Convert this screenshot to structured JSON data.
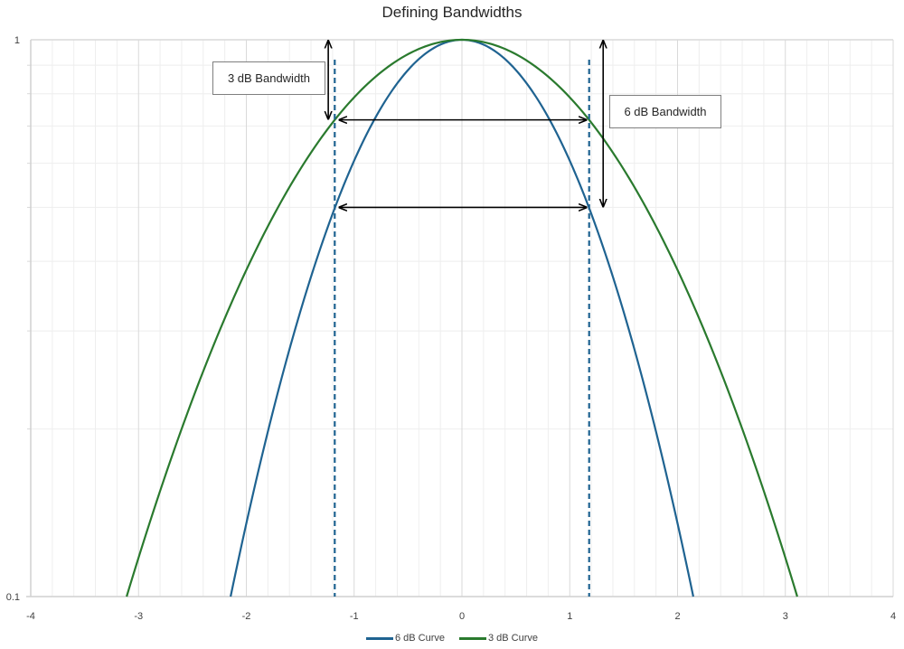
{
  "chart_data": {
    "type": "line",
    "title": "Defining Bandwidths",
    "xlabel": "",
    "ylabel": "",
    "xlim": [
      -4,
      4
    ],
    "ylim": [
      0.1,
      1
    ],
    "yscale": "log",
    "x_ticks": [
      "-4",
      "-3",
      "-2",
      "-1",
      "0",
      "1",
      "2",
      "3",
      "4"
    ],
    "y_ticks": [
      "0.1",
      "1"
    ],
    "x_minor_step": 0.2,
    "y_minor_ticks": [
      0.2,
      0.3,
      0.4,
      0.5,
      0.6,
      0.7,
      0.8,
      0.9
    ],
    "grid": true,
    "legend_position": "bottom",
    "series": [
      {
        "name": "6 dB Curve",
        "color": "#1f6391",
        "model": "exp(-0.5*x^2)",
        "coef": 0.5,
        "x": [
          -2.15,
          -2.0,
          -1.5,
          -1.18,
          -1.0,
          -0.5,
          0,
          0.5,
          1.0,
          1.18,
          1.5,
          2.0,
          2.15
        ],
        "values": [
          0.099,
          0.135,
          0.325,
          0.5,
          0.607,
          0.882,
          1.0,
          0.882,
          0.607,
          0.5,
          0.325,
          0.135,
          0.099
        ]
      },
      {
        "name": "3 dB Curve",
        "color": "#2a7a2e",
        "model": "exp(-0.238*x^2)",
        "coef": 0.238,
        "x": [
          -3.11,
          -3.0,
          -2.0,
          -1.18,
          -1.0,
          0,
          1.0,
          1.18,
          2.0,
          3.0,
          3.11
        ],
        "values": [
          0.1,
          0.117,
          0.386,
          0.718,
          0.788,
          1.0,
          0.788,
          0.718,
          0.386,
          0.117,
          0.1
        ]
      }
    ],
    "annotations": [
      {
        "type": "dashed-vline",
        "x": -1.18,
        "color": "#1f6391"
      },
      {
        "type": "dashed-vline",
        "x": 1.18,
        "color": "#1f6391"
      },
      {
        "type": "double-arrow-horizontal",
        "y": 0.718,
        "x_from": -1.18,
        "x_to": 1.18,
        "meaning": "3 dB bandwidth"
      },
      {
        "type": "double-arrow-horizontal",
        "y": 0.5,
        "x_from": -1.18,
        "x_to": 1.18,
        "meaning": "6 dB bandwidth"
      },
      {
        "type": "double-arrow-vertical",
        "x": -1.24,
        "y_from": 1.0,
        "y_to": 0.718,
        "label": "3 dB Bandwidth"
      },
      {
        "type": "double-arrow-vertical",
        "x": 1.31,
        "y_from": 1.0,
        "y_to": 0.5,
        "label": "6 dB Bandwidth"
      }
    ]
  },
  "labels": {
    "title": "Defining Bandwidths",
    "box_3db": "3 dB Bandwidth",
    "box_6db": "6 dB Bandwidth",
    "legend": [
      "6 dB Curve",
      "3 dB Curve"
    ]
  }
}
